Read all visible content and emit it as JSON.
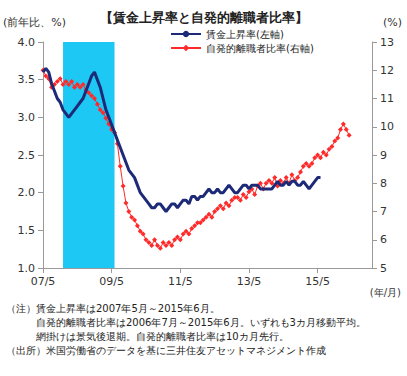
{
  "chart_data": {
    "type": "line",
    "title": "【賃金上昇率と自発的離職者比率】",
    "y_label": "(前年比、%)",
    "y2_label": "(%)",
    "x_label": "(年/月)",
    "categories": [
      "07/5",
      null,
      null,
      null,
      null,
      null,
      null,
      null,
      null,
      null,
      null,
      null,
      null,
      null,
      null,
      null,
      null,
      null,
      null,
      null,
      null,
      null,
      null,
      null,
      "09/5",
      null,
      null,
      null,
      null,
      null,
      null,
      null,
      null,
      null,
      null,
      null,
      null,
      null,
      null,
      null,
      null,
      null,
      null,
      null,
      null,
      null,
      null,
      null,
      "11/5",
      null,
      null,
      null,
      null,
      null,
      null,
      null,
      null,
      null,
      null,
      null,
      null,
      null,
      null,
      null,
      null,
      null,
      null,
      null,
      null,
      null,
      null,
      null,
      "13/5",
      null,
      null,
      null,
      null,
      null,
      null,
      null,
      null,
      null,
      null,
      null,
      null,
      null,
      null,
      null,
      null,
      null,
      null,
      null,
      null,
      null,
      null,
      null,
      "15/5",
      null,
      null,
      null,
      null,
      null,
      null,
      null,
      null,
      null,
      null,
      null,
      null,
      null,
      null,
      null,
      null,
      null,
      null,
      null
    ],
    "series": [
      {
        "name": "賃金上昇率(左軸)",
        "color": "#1c2a78",
        "values": [
          3.6,
          3.65,
          3.6,
          3.45,
          3.35,
          3.25,
          3.2,
          3.1,
          3.05,
          3.0,
          3.05,
          3.1,
          3.15,
          3.2,
          3.25,
          3.35,
          3.45,
          3.55,
          3.6,
          3.5,
          3.4,
          3.25,
          3.1,
          3.0,
          2.9,
          2.8,
          2.7,
          2.6,
          2.5,
          2.4,
          2.3,
          2.25,
          2.2,
          2.1,
          2.0,
          1.95,
          1.9,
          1.85,
          1.8,
          1.8,
          1.85,
          1.85,
          1.8,
          1.75,
          1.8,
          1.85,
          1.85,
          1.8,
          1.85,
          1.9,
          1.9,
          1.85,
          1.95,
          1.95,
          1.9,
          1.95,
          1.95,
          2.0,
          2.05,
          2.0,
          2.0,
          2.05,
          2.0,
          2.0,
          2.05,
          2.1,
          2.05,
          2.0,
          2.0,
          2.05,
          2.1,
          2.1,
          2.05,
          2.1,
          2.1,
          2.1,
          2.05,
          2.05,
          2.05,
          2.05,
          2.05,
          2.1,
          2.15,
          2.1,
          2.1,
          2.15,
          2.1,
          2.15,
          2.15,
          2.1,
          2.1,
          2.15,
          2.1,
          2.05,
          2.1,
          2.15,
          2.2,
          2.2,
          null,
          null,
          null,
          null,
          null,
          null,
          null,
          null,
          null,
          null,
          null,
          null,
          null,
          null,
          null,
          null,
          null,
          null
        ]
      },
      {
        "name": "自発的離職者比率(右軸)",
        "color": "#ff2a2a",
        "marker": "diamond",
        "axis": "y2",
        "values": [
          12.0,
          11.8,
          11.7,
          11.4,
          11.5,
          11.6,
          11.7,
          11.5,
          11.6,
          11.5,
          11.6,
          11.4,
          11.5,
          11.4,
          11.5,
          11.3,
          11.2,
          11.1,
          11.0,
          10.8,
          10.6,
          10.5,
          10.3,
          10.1,
          9.9,
          9.8,
          9.4,
          8.6,
          7.9,
          7.3,
          7.0,
          6.8,
          6.7,
          6.5,
          6.3,
          6.2,
          6.0,
          5.9,
          5.8,
          6.0,
          5.8,
          5.7,
          5.9,
          5.8,
          5.9,
          5.8,
          6.0,
          6.1,
          6.0,
          6.2,
          6.3,
          6.2,
          6.4,
          6.5,
          6.6,
          6.6,
          6.7,
          6.8,
          6.9,
          6.8,
          7.0,
          7.1,
          7.2,
          7.1,
          7.3,
          7.2,
          7.4,
          7.5,
          7.5,
          7.4,
          7.6,
          7.5,
          7.7,
          7.8,
          7.6,
          7.9,
          8.0,
          7.8,
          8.0,
          8.1,
          8.0,
          8.2,
          7.9,
          8.1,
          8.0,
          8.2,
          8.0,
          8.3,
          8.1,
          8.2,
          8.4,
          8.6,
          8.7,
          8.6,
          8.7,
          8.9,
          9.0,
          8.9,
          9.1,
          9.0,
          9.2,
          9.3,
          9.5,
          9.6,
          9.9,
          10.1,
          9.9,
          9.7,
          null,
          null,
          null,
          null,
          null,
          null,
          null,
          null
        ]
      }
    ],
    "ylim": [
      1,
      4
    ],
    "yticks": [
      {
        "value": 1,
        "label": "1.0"
      },
      {
        "value": 1.5,
        "label": "1.5"
      },
      {
        "value": 2,
        "label": "2.0"
      },
      {
        "value": 2.5,
        "label": "2.5"
      },
      {
        "value": 3,
        "label": "3.0"
      },
      {
        "value": 3.5,
        "label": "3.5"
      },
      {
        "value": 4,
        "label": "4.0"
      }
    ],
    "y2lim": [
      5,
      13
    ],
    "y2ticks": [
      5,
      6,
      7,
      8,
      9,
      10,
      11,
      12,
      13
    ],
    "recession": {
      "start": 7,
      "end": 25,
      "color": "#1ec8f5"
    },
    "annotations": [
      "（注）賃金上昇率は2007年5月～2015年6月。",
      "自発的離職者比率は2006年7月～2015年6月。いずれも3カ月移動平均。",
      "網掛けは景気後退期。自発的離職者比率は10カ月先行。",
      "（出所）米国労働省のデータを基に三井住友アセットマネジメント作成"
    ],
    "grid": false,
    "legend": "top"
  }
}
